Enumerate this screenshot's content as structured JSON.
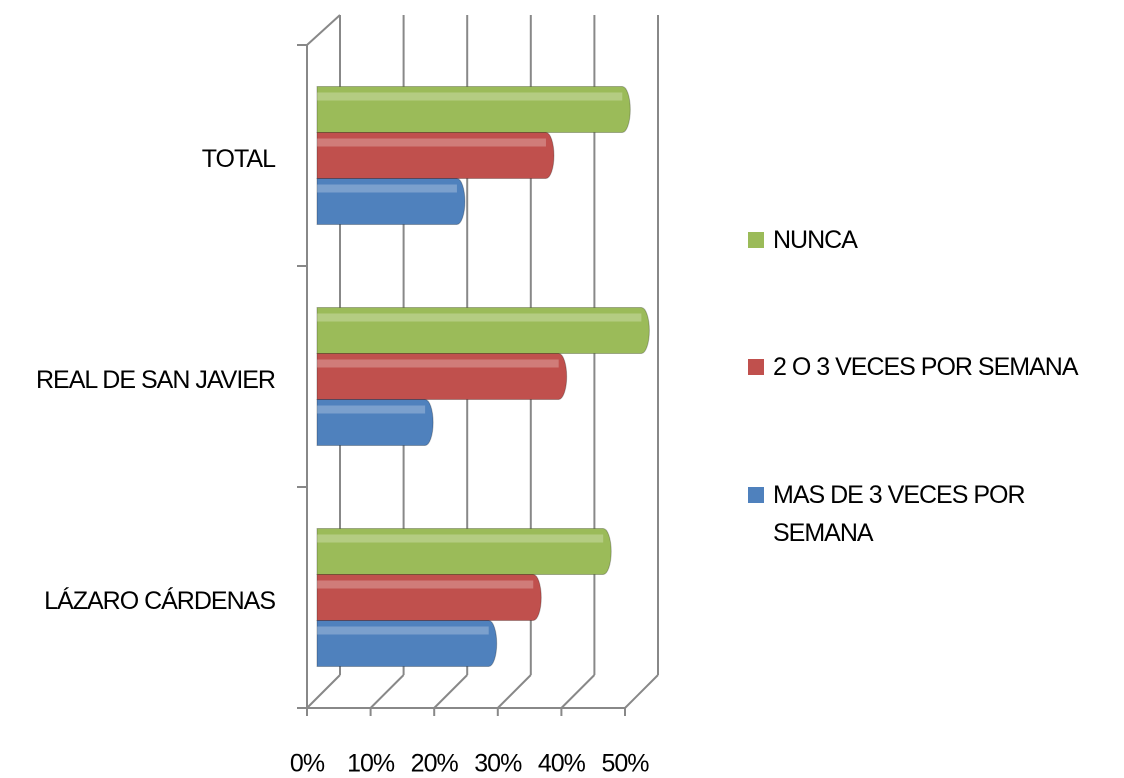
{
  "chart_data": {
    "type": "bar",
    "orientation": "horizontal",
    "categories": [
      "LÁZARO CÁRDENAS",
      "REAL DE SAN JAVIER",
      "TOTAL"
    ],
    "series": [
      {
        "name": "NUNCA",
        "color": "#9bbb59",
        "values": [
          45,
          51,
          48
        ]
      },
      {
        "name": "2 O 3 VECES POR SEMANA",
        "color": "#c0504d",
        "values": [
          34,
          38,
          36
        ]
      },
      {
        "name": "MAS DE 3 VECES POR SEMANA",
        "color": "#4f81bd",
        "values": [
          27,
          17,
          22
        ]
      }
    ],
    "xlim": [
      0,
      50
    ],
    "xticks": [
      {
        "value": 0,
        "label": "0%"
      },
      {
        "value": 10,
        "label": "10%"
      },
      {
        "value": 20,
        "label": "20%"
      },
      {
        "value": 30,
        "label": "30%"
      },
      {
        "value": 40,
        "label": "40%"
      },
      {
        "value": 50,
        "label": "50%"
      }
    ],
    "grid": true,
    "legend": "right"
  }
}
